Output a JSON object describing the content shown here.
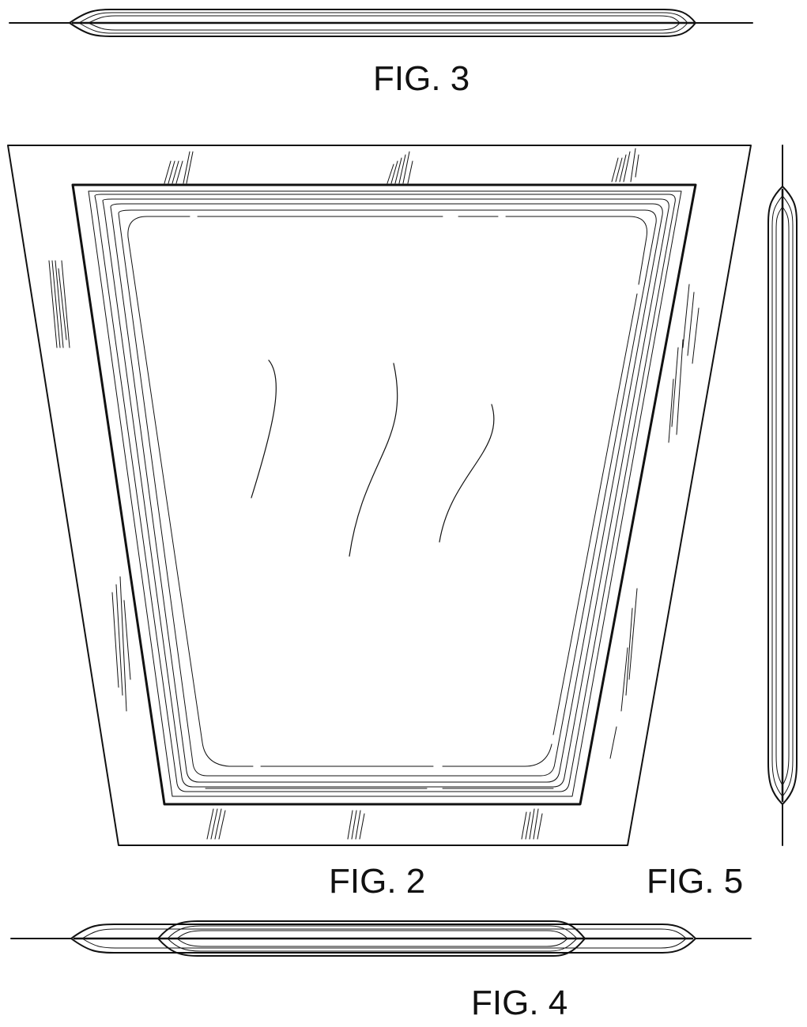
{
  "figures": {
    "fig3": {
      "label": "FIG. 3"
    },
    "fig2": {
      "label": "FIG. 2"
    },
    "fig5": {
      "label": "FIG. 5"
    },
    "fig4": {
      "label": "FIG. 4"
    }
  },
  "colors": {
    "line": "#111111",
    "background": "#ffffff"
  }
}
